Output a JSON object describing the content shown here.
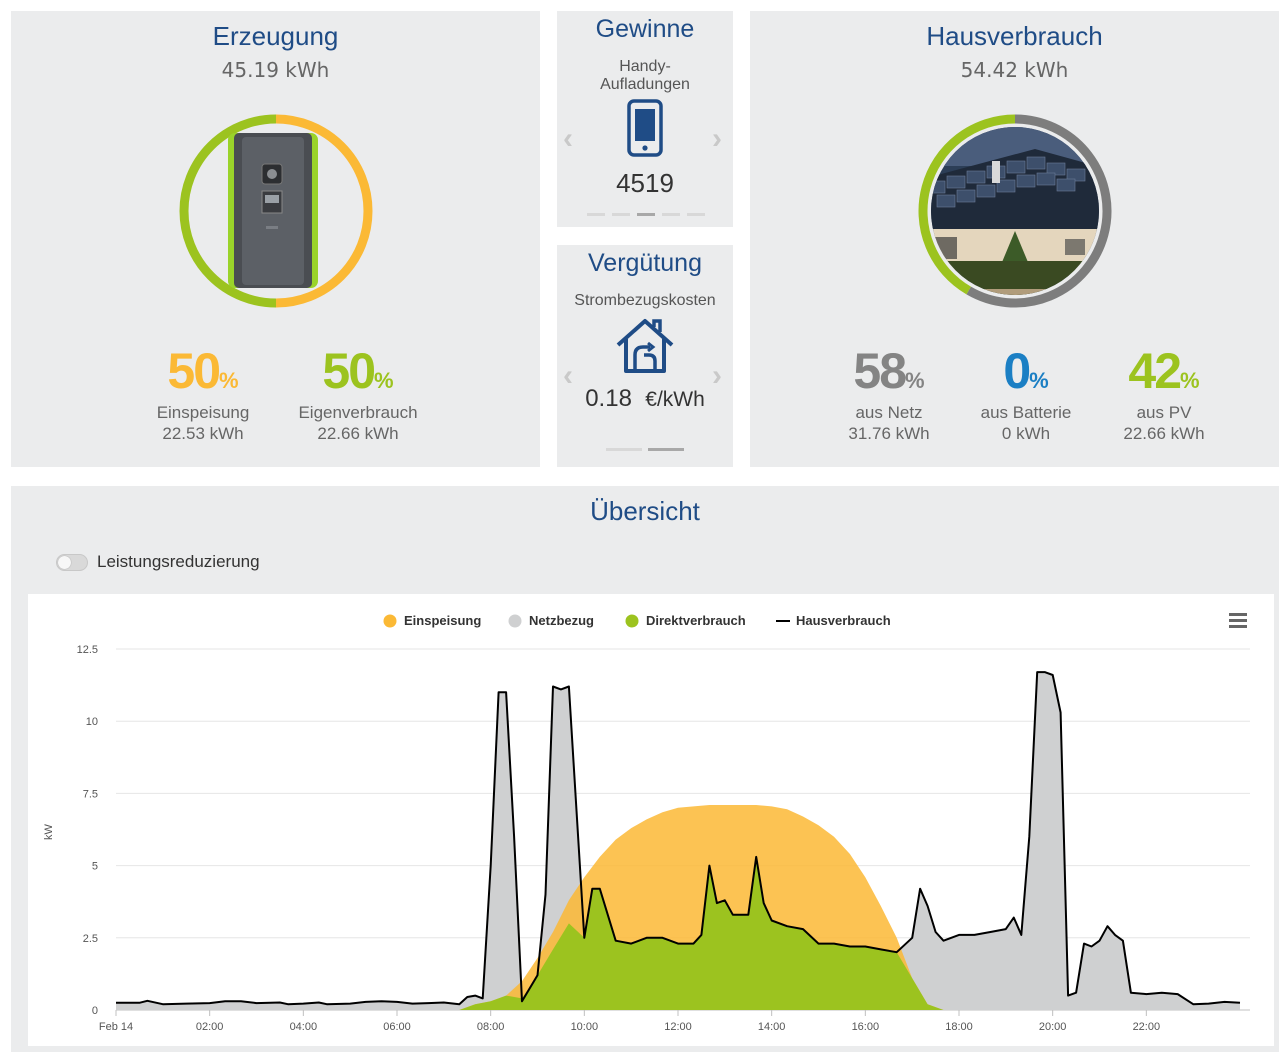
{
  "erzeugung": {
    "title": "Erzeugung",
    "total": "45.19 kWh",
    "stats": [
      {
        "value": "50",
        "unit": "%",
        "label": "Einspeisung",
        "sub": "22.53 kWh",
        "color": "#fbb935"
      },
      {
        "value": "50",
        "unit": "%",
        "label": "Eigenverbrauch",
        "sub": "22.66 kWh",
        "color": "#9cc31f"
      }
    ]
  },
  "gewinne": {
    "title": "Gewinne",
    "label": "Handy-\nAufladungen",
    "icon": "smartphone-icon",
    "value": "4519",
    "dots_count": 5,
    "active_dot": 3
  },
  "verguetung": {
    "title": "Vergütung",
    "label": "Strombezugskosten",
    "icon": "house-plug-icon",
    "value": "0.18",
    "unit": "€/kWh",
    "dots_count": 2,
    "active_dot": 2
  },
  "hausverbrauch": {
    "title": "Hausverbrauch",
    "total": "54.42 kWh",
    "stats": [
      {
        "value": "58",
        "unit": "%",
        "label": "aus Netz",
        "sub": "31.76 kWh",
        "color": "#848484"
      },
      {
        "value": "0",
        "unit": "%",
        "label": "aus Batterie",
        "sub": "0 kWh",
        "color": "#1b7fc4"
      },
      {
        "value": "42",
        "unit": "%",
        "label": "aus PV",
        "sub": "22.66 kWh",
        "color": "#9cc31f"
      }
    ]
  },
  "uebersicht": {
    "title": "Übersicht",
    "toggle_label": "Leistungsreduzierung",
    "toggle_on": false,
    "menu_icon": "hamburger-menu-icon"
  },
  "colors": {
    "title_blue": "#1f4c86",
    "orange": "#fbb935",
    "green": "#9cc31f",
    "grey": "#cfd0d1",
    "ring_grey": "#7d7d7d"
  },
  "chart_data": {
    "type": "area",
    "ylabel": "kW",
    "ylim": [
      0,
      12.5
    ],
    "yticks": [
      "0",
      "2.5",
      "5",
      "7.5",
      "10",
      "12.5"
    ],
    "xticks": [
      "Feb 14",
      "02:00",
      "04:00",
      "06:00",
      "08:00",
      "10:00",
      "12:00",
      "14:00",
      "16:00",
      "18:00",
      "20:00",
      "22:00"
    ],
    "x_range_hours": [
      0,
      27
    ],
    "legend": [
      {
        "name": "Einspeisung",
        "color": "#fbb935",
        "marker": "circle"
      },
      {
        "name": "Netzbezug",
        "color": "#cfd0d1",
        "marker": "circle"
      },
      {
        "name": "Direktverbrauch",
        "color": "#9cc31f",
        "marker": "circle"
      },
      {
        "name": "Hausverbrauch",
        "color": "#000000",
        "marker": "line"
      }
    ],
    "series": [
      {
        "name": "Einspeisung",
        "points": [
          [
            0,
            0
          ],
          [
            7.33,
            0
          ],
          [
            7.67,
            0.2
          ],
          [
            8,
            0.3
          ],
          [
            8.33,
            0.5
          ],
          [
            8.67,
            1
          ],
          [
            9,
            1.8
          ],
          [
            9.33,
            2.7
          ],
          [
            9.67,
            3.8
          ],
          [
            10,
            4.6
          ],
          [
            10.33,
            5.3
          ],
          [
            10.67,
            5.9
          ],
          [
            11,
            6.3
          ],
          [
            11.33,
            6.6
          ],
          [
            11.67,
            6.85
          ],
          [
            12,
            7.0
          ],
          [
            12.33,
            7.05
          ],
          [
            12.67,
            7.1
          ],
          [
            13,
            7.1
          ],
          [
            13.33,
            7.1
          ],
          [
            13.67,
            7.1
          ],
          [
            14,
            7.05
          ],
          [
            14.33,
            6.95
          ],
          [
            14.67,
            6.7
          ],
          [
            15,
            6.4
          ],
          [
            15.33,
            6.0
          ],
          [
            15.67,
            5.4
          ],
          [
            16,
            4.6
          ],
          [
            16.33,
            3.6
          ],
          [
            16.67,
            2.5
          ],
          [
            17,
            1.1
          ],
          [
            17.33,
            0.2
          ],
          [
            17.67,
            0
          ],
          [
            24,
            0
          ]
        ]
      },
      {
        "name": "Direktverbrauch",
        "points": [
          [
            0,
            0
          ],
          [
            7.33,
            0
          ],
          [
            7.67,
            0.2
          ],
          [
            8,
            0.3
          ],
          [
            8.33,
            0.5
          ],
          [
            8.67,
            0.4
          ],
          [
            9,
            1.2
          ],
          [
            9.33,
            2.1
          ],
          [
            9.67,
            3.0
          ],
          [
            10,
            2.5
          ],
          [
            10.17,
            4.2
          ],
          [
            10.33,
            4.2
          ],
          [
            10.67,
            2.4
          ],
          [
            11,
            2.3
          ],
          [
            11.33,
            2.5
          ],
          [
            11.67,
            2.5
          ],
          [
            12,
            2.3
          ],
          [
            12.33,
            2.3
          ],
          [
            12.5,
            2.6
          ],
          [
            12.67,
            5.0
          ],
          [
            12.83,
            3.7
          ],
          [
            13,
            3.8
          ],
          [
            13.17,
            3.3
          ],
          [
            13.5,
            3.3
          ],
          [
            13.67,
            5.3
          ],
          [
            13.83,
            3.7
          ],
          [
            14,
            3.1
          ],
          [
            14.33,
            2.9
          ],
          [
            14.67,
            2.8
          ],
          [
            15,
            2.3
          ],
          [
            15.33,
            2.3
          ],
          [
            15.67,
            2.2
          ],
          [
            16,
            2.2
          ],
          [
            16.33,
            2.1
          ],
          [
            16.67,
            2.0
          ],
          [
            17,
            1.1
          ],
          [
            17.33,
            0.2
          ],
          [
            17.67,
            0
          ],
          [
            24,
            0
          ]
        ]
      },
      {
        "name": "Hausverbrauch",
        "points": [
          [
            0,
            0.25
          ],
          [
            0.5,
            0.25
          ],
          [
            0.67,
            0.32
          ],
          [
            1,
            0.2
          ],
          [
            1.5,
            0.22
          ],
          [
            2,
            0.24
          ],
          [
            2.33,
            0.3
          ],
          [
            2.67,
            0.3
          ],
          [
            3,
            0.24
          ],
          [
            3.5,
            0.26
          ],
          [
            3.67,
            0.2
          ],
          [
            4,
            0.22
          ],
          [
            4.33,
            0.26
          ],
          [
            4.5,
            0.2
          ],
          [
            5,
            0.22
          ],
          [
            5.33,
            0.28
          ],
          [
            5.67,
            0.3
          ],
          [
            6,
            0.28
          ],
          [
            6.33,
            0.22
          ],
          [
            6.67,
            0.24
          ],
          [
            7,
            0.26
          ],
          [
            7.33,
            0.2
          ],
          [
            7.5,
            0.45
          ],
          [
            7.67,
            0.5
          ],
          [
            7.83,
            0.4
          ],
          [
            8,
            5.0
          ],
          [
            8.17,
            11.0
          ],
          [
            8.33,
            11.0
          ],
          [
            8.5,
            6.0
          ],
          [
            8.67,
            0.3
          ],
          [
            9,
            1.2
          ],
          [
            9.17,
            4.0
          ],
          [
            9.33,
            11.2
          ],
          [
            9.5,
            11.1
          ],
          [
            9.67,
            11.2
          ],
          [
            10,
            2.5
          ],
          [
            10.17,
            4.2
          ],
          [
            10.33,
            4.2
          ],
          [
            10.67,
            2.4
          ],
          [
            11,
            2.3
          ],
          [
            11.33,
            2.5
          ],
          [
            11.67,
            2.5
          ],
          [
            12,
            2.3
          ],
          [
            12.33,
            2.3
          ],
          [
            12.5,
            2.6
          ],
          [
            12.67,
            5.0
          ],
          [
            12.83,
            3.7
          ],
          [
            13,
            3.8
          ],
          [
            13.17,
            3.3
          ],
          [
            13.5,
            3.3
          ],
          [
            13.67,
            5.3
          ],
          [
            13.83,
            3.7
          ],
          [
            14,
            3.1
          ],
          [
            14.33,
            2.9
          ],
          [
            14.67,
            2.8
          ],
          [
            15,
            2.3
          ],
          [
            15.33,
            2.3
          ],
          [
            15.67,
            2.2
          ],
          [
            16,
            2.2
          ],
          [
            16.33,
            2.1
          ],
          [
            16.67,
            2.0
          ],
          [
            17,
            2.5
          ],
          [
            17.17,
            4.2
          ],
          [
            17.33,
            3.6
          ],
          [
            17.5,
            2.7
          ],
          [
            17.67,
            2.4
          ],
          [
            18,
            2.6
          ],
          [
            18.33,
            2.6
          ],
          [
            18.67,
            2.7
          ],
          [
            19,
            2.8
          ],
          [
            19.17,
            3.2
          ],
          [
            19.33,
            2.6
          ],
          [
            19.5,
            6.0
          ],
          [
            19.67,
            11.7
          ],
          [
            19.83,
            11.7
          ],
          [
            20,
            11.6
          ],
          [
            20.17,
            10.3
          ],
          [
            20.33,
            0.5
          ],
          [
            20.5,
            0.6
          ],
          [
            20.67,
            2.3
          ],
          [
            20.83,
            2.2
          ],
          [
            21,
            2.4
          ],
          [
            21.17,
            2.9
          ],
          [
            21.33,
            2.6
          ],
          [
            21.5,
            2.4
          ],
          [
            21.67,
            0.6
          ],
          [
            22,
            0.55
          ],
          [
            22.33,
            0.6
          ],
          [
            22.67,
            0.55
          ],
          [
            23,
            0.2
          ],
          [
            23.33,
            0.22
          ],
          [
            23.67,
            0.28
          ],
          [
            24,
            0.25
          ]
        ]
      }
    ]
  }
}
